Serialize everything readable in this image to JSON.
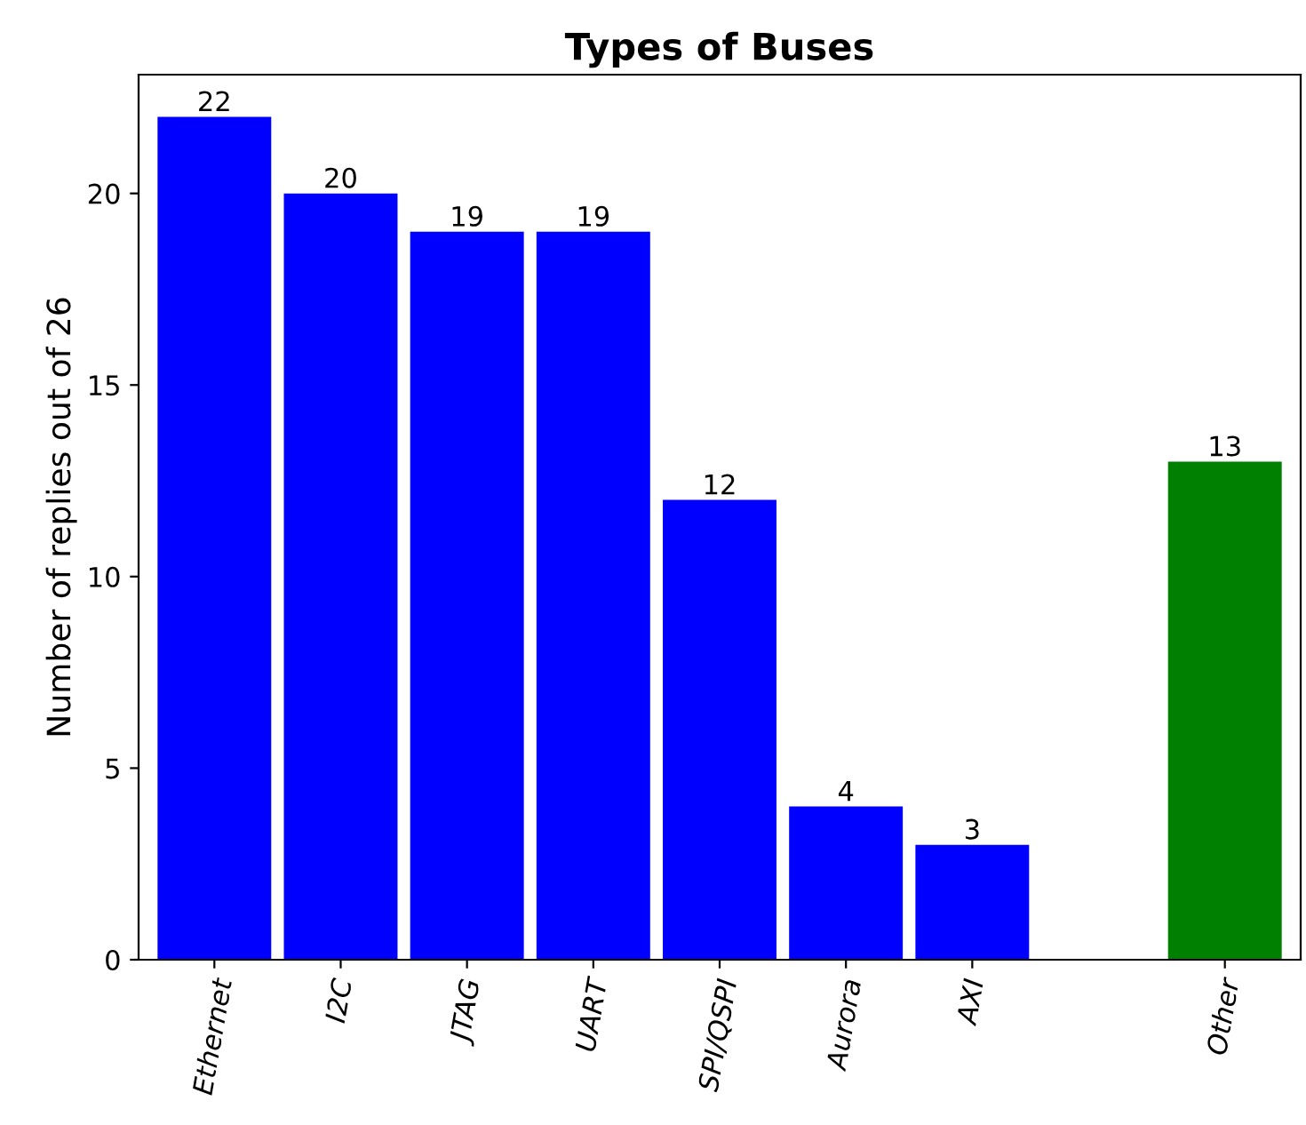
{
  "chart_data": {
    "type": "bar",
    "title": "Types of Buses",
    "ylabel": "Number of replies out of 26",
    "categories": [
      "Ethernet",
      "I2C",
      "JTAG",
      "UART",
      "SPI/QSPI",
      "Aurora",
      "AXI",
      null,
      "Other"
    ],
    "values": [
      22,
      20,
      19,
      19,
      12,
      4,
      3,
      null,
      13
    ],
    "colors": [
      "#0000ff",
      "#0000ff",
      "#0000ff",
      "#0000ff",
      "#0000ff",
      "#0000ff",
      "#0000ff",
      null,
      "#008000"
    ],
    "ylim": [
      0,
      23.1
    ],
    "yticks": [
      0,
      5,
      10,
      15,
      20
    ],
    "data_labels": true,
    "grid": false
  }
}
